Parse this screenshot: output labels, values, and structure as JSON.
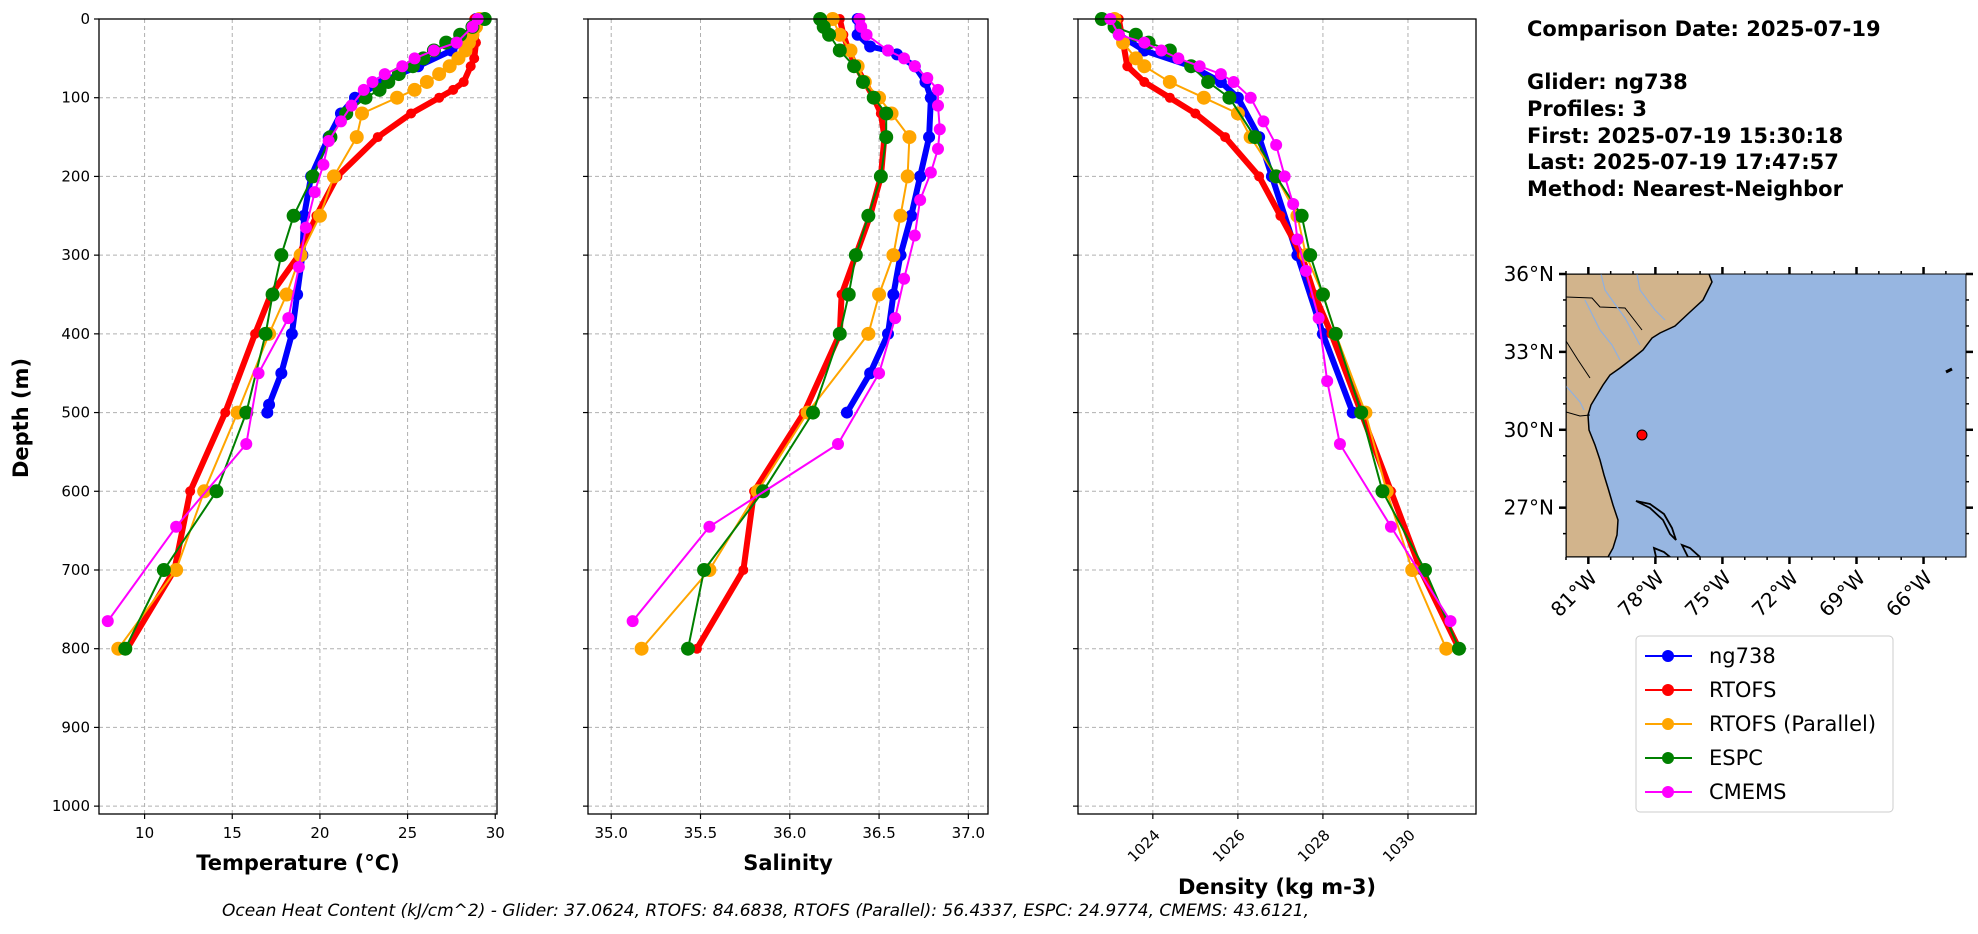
{
  "info": {
    "comparison_date": "Comparison Date: 2025-07-19",
    "lines": [
      "Glider: ng738",
      "Profiles: 3",
      "First: 2025-07-19 15:30:18",
      "Last: 2025-07-19 17:47:57",
      "Method: Nearest-Neighbor"
    ]
  },
  "footer": "Ocean Heat Content (kJ/cm^2) - Glider: 37.0624,  RTOFS: 84.6838,  RTOFS (Parallel): 56.4337,  ESPC: 24.9774,  CMEMS: 43.6121,",
  "legend": [
    {
      "name": "ng738",
      "color": "#0000ff"
    },
    {
      "name": "RTOFS",
      "color": "#ff0000"
    },
    {
      "name": "RTOFS (Parallel)",
      "color": "#ffa500"
    },
    {
      "name": "ESPC",
      "color": "#008000"
    },
    {
      "name": "CMEMS",
      "color": "#ff00ff"
    }
  ],
  "chart_data": [
    {
      "type": "line",
      "title": "",
      "xlabel": "Temperature (°C)",
      "ylabel": "Depth (m)",
      "xlim": [
        7.4,
        30.1
      ],
      "ylim": [
        1010,
        0
      ],
      "xticks": [
        "10",
        "15",
        "20",
        "25",
        "30"
      ],
      "xtick_values": [
        10,
        15,
        20,
        25,
        30
      ],
      "yticks": [
        "0",
        "100",
        "200",
        "300",
        "400",
        "500",
        "600",
        "700",
        "800",
        "900",
        "1000"
      ],
      "ytick_values": [
        0,
        100,
        200,
        300,
        400,
        500,
        600,
        700,
        800,
        900,
        1000
      ],
      "grid": true,
      "series": [
        {
          "name": "ng738",
          "color": "#0000ff",
          "depth": [
            0,
            20,
            40,
            60,
            80,
            100,
            120,
            150,
            200,
            250,
            300,
            350,
            400,
            450,
            490,
            500
          ],
          "values": [
            28.9,
            28.6,
            27.5,
            25.6,
            23.5,
            22.0,
            21.2,
            20.5,
            19.5,
            19.1,
            19.0,
            18.7,
            18.4,
            17.8,
            17.1,
            17.0
          ]
        },
        {
          "name": "RTOFS",
          "color": "#ff0000",
          "depth": [
            0,
            10,
            30,
            50,
            60,
            80,
            90,
            100,
            120,
            150,
            200,
            250,
            300,
            350,
            400,
            500,
            600,
            700,
            800
          ],
          "values": [
            28.8,
            28.9,
            28.9,
            28.8,
            28.6,
            28.2,
            27.6,
            26.8,
            25.2,
            23.3,
            21.0,
            19.8,
            18.8,
            17.2,
            16.3,
            14.6,
            12.6,
            11.7,
            9.0
          ]
        },
        {
          "name": "RTOFS (Parallel)",
          "color": "#ffa500",
          "depth": [
            0,
            10,
            20,
            30,
            40,
            50,
            60,
            70,
            80,
            90,
            100,
            120,
            150,
            200,
            250,
            300,
            350,
            400,
            500,
            600,
            700,
            800
          ],
          "values": [
            29.1,
            28.9,
            28.7,
            28.5,
            28.3,
            27.9,
            27.4,
            26.8,
            26.1,
            25.4,
            24.4,
            22.4,
            22.1,
            20.8,
            20.0,
            18.9,
            18.1,
            17.1,
            15.3,
            13.4,
            11.8,
            8.5
          ]
        },
        {
          "name": "ESPC",
          "color": "#008000",
          "depth": [
            0,
            10,
            20,
            30,
            40,
            50,
            60,
            70,
            80,
            90,
            100,
            120,
            150,
            200,
            250,
            300,
            350,
            400,
            500,
            600,
            700,
            800
          ],
          "values": [
            29.4,
            28.7,
            28.0,
            27.2,
            26.5,
            25.9,
            25.3,
            24.5,
            23.9,
            23.4,
            22.6,
            21.5,
            20.6,
            19.6,
            18.5,
            17.8,
            17.3,
            16.9,
            15.8,
            14.1,
            11.1,
            8.9
          ]
        },
        {
          "name": "CMEMS",
          "color": "#ff00ff",
          "depth": [
            0,
            10,
            30,
            40,
            50,
            60,
            70,
            80,
            90,
            110,
            130,
            155,
            185,
            220,
            265,
            315,
            380,
            450,
            540,
            645,
            765
          ],
          "values": [
            29.0,
            28.7,
            27.8,
            26.5,
            25.4,
            24.7,
            23.7,
            23.0,
            22.5,
            21.8,
            21.2,
            20.5,
            20.2,
            19.7,
            19.2,
            18.8,
            18.2,
            16.5,
            15.8,
            11.8,
            7.9
          ]
        }
      ]
    },
    {
      "type": "line",
      "title": "",
      "xlabel": "Salinity",
      "ylabel": "",
      "xlim": [
        34.87,
        37.11
      ],
      "ylim": [
        1010,
        0
      ],
      "xticks": [
        "35.0",
        "35.5",
        "36.0",
        "36.5",
        "37.0"
      ],
      "xtick_values": [
        35.0,
        35.5,
        36.0,
        36.5,
        37.0
      ],
      "grid": true,
      "series": [
        {
          "name": "ng738",
          "color": "#0000ff",
          "depth": [
            0,
            20,
            35,
            40,
            45,
            60,
            80,
            100,
            150,
            200,
            250,
            300,
            350,
            400,
            450,
            500
          ],
          "values": [
            36.38,
            36.38,
            36.45,
            36.55,
            36.6,
            36.7,
            36.76,
            36.79,
            36.78,
            36.73,
            36.68,
            36.62,
            36.58,
            36.55,
            36.45,
            36.32
          ]
        },
        {
          "name": "RTOFS",
          "color": "#ff0000",
          "depth": [
            0,
            20,
            40,
            60,
            80,
            100,
            120,
            150,
            200,
            250,
            300,
            350,
            400,
            500,
            600,
            700,
            800
          ],
          "values": [
            36.28,
            36.3,
            36.33,
            36.37,
            36.42,
            36.47,
            36.51,
            36.53,
            36.51,
            36.45,
            36.37,
            36.29,
            36.28,
            36.08,
            35.8,
            35.74,
            35.48
          ]
        },
        {
          "name": "RTOFS (Parallel)",
          "color": "#ffa500",
          "depth": [
            0,
            20,
            40,
            60,
            80,
            100,
            120,
            150,
            200,
            250,
            300,
            350,
            400,
            500,
            600,
            700,
            800
          ],
          "values": [
            36.24,
            36.28,
            36.34,
            36.38,
            36.42,
            36.5,
            36.57,
            36.67,
            36.66,
            36.62,
            36.58,
            36.5,
            36.44,
            36.1,
            35.82,
            35.55,
            35.17
          ]
        },
        {
          "name": "ESPC",
          "color": "#008000",
          "depth": [
            0,
            10,
            20,
            40,
            60,
            80,
            100,
            120,
            150,
            200,
            250,
            300,
            350,
            400,
            500,
            600,
            700,
            800
          ],
          "values": [
            36.17,
            36.19,
            36.22,
            36.28,
            36.36,
            36.41,
            36.47,
            36.54,
            36.54,
            36.51,
            36.44,
            36.37,
            36.33,
            36.28,
            36.13,
            35.85,
            35.52,
            35.43
          ]
        },
        {
          "name": "CMEMS",
          "color": "#ff00ff",
          "depth": [
            0,
            10,
            20,
            40,
            50,
            60,
            75,
            90,
            110,
            140,
            165,
            195,
            230,
            275,
            330,
            380,
            450,
            540,
            645,
            765
          ],
          "values": [
            36.39,
            36.4,
            36.43,
            36.55,
            36.64,
            36.7,
            36.77,
            36.83,
            36.83,
            36.84,
            36.83,
            36.79,
            36.73,
            36.7,
            36.64,
            36.59,
            36.5,
            36.27,
            35.55,
            35.12
          ]
        }
      ]
    },
    {
      "type": "line",
      "title": "",
      "xlabel": "Density (kg m-3)",
      "ylabel": "",
      "xlim": [
        1022.24,
        1031.6
      ],
      "ylim": [
        1010,
        0
      ],
      "xticks": [
        "1024",
        "1026",
        "1028",
        "1030"
      ],
      "xtick_values": [
        1024,
        1026,
        1028,
        1030
      ],
      "grid": true,
      "series": [
        {
          "name": "ng738",
          "color": "#0000ff",
          "depth": [
            0,
            20,
            40,
            60,
            80,
            100,
            150,
            200,
            300,
            400,
            500
          ],
          "values": [
            1023.1,
            1023.2,
            1023.8,
            1024.9,
            1025.6,
            1026.0,
            1026.5,
            1026.8,
            1027.4,
            1028.0,
            1028.7
          ]
        },
        {
          "name": "RTOFS",
          "color": "#ff0000",
          "depth": [
            0,
            30,
            60,
            80,
            100,
            120,
            150,
            200,
            250,
            300,
            350,
            400,
            500,
            600,
            700,
            800
          ],
          "values": [
            1023.2,
            1023.3,
            1023.4,
            1023.8,
            1024.4,
            1025.0,
            1025.7,
            1026.5,
            1027.0,
            1027.5,
            1027.8,
            1028.2,
            1028.9,
            1029.6,
            1030.3,
            1031.2
          ]
        },
        {
          "name": "RTOFS (Parallel)",
          "color": "#ffa500",
          "depth": [
            0,
            30,
            50,
            60,
            80,
            100,
            120,
            150,
            200,
            250,
            300,
            350,
            400,
            500,
            600,
            700,
            800
          ],
          "values": [
            1023.1,
            1023.3,
            1023.6,
            1023.8,
            1024.4,
            1025.2,
            1026.0,
            1026.3,
            1026.9,
            1027.4,
            1027.6,
            1028.0,
            1028.3,
            1029.0,
            1029.5,
            1030.1,
            1030.9
          ]
        },
        {
          "name": "ESPC",
          "color": "#008000",
          "depth": [
            0,
            10,
            20,
            30,
            40,
            60,
            80,
            100,
            150,
            200,
            250,
            300,
            350,
            400,
            500,
            600,
            700,
            800
          ],
          "values": [
            1022.8,
            1023.1,
            1023.6,
            1023.9,
            1024.4,
            1024.9,
            1025.3,
            1025.8,
            1026.4,
            1026.9,
            1027.5,
            1027.7,
            1028.0,
            1028.3,
            1028.9,
            1029.4,
            1030.4,
            1031.2
          ]
        },
        {
          "name": "CMEMS",
          "color": "#ff00ff",
          "depth": [
            0,
            20,
            30,
            40,
            50,
            60,
            70,
            80,
            100,
            130,
            160,
            200,
            235,
            280,
            320,
            380,
            460,
            540,
            645,
            765
          ],
          "values": [
            1023.0,
            1023.2,
            1023.8,
            1024.2,
            1024.6,
            1025.1,
            1025.6,
            1025.9,
            1026.3,
            1026.6,
            1026.9,
            1027.1,
            1027.3,
            1027.4,
            1027.6,
            1027.9,
            1028.1,
            1028.4,
            1029.6,
            1031.0
          ]
        }
      ]
    }
  ],
  "map": {
    "lon_range": [
      -82.0,
      -64.1
    ],
    "lat_range": [
      25.1,
      36.0
    ],
    "lon_ticks": [
      "81°W",
      "78°W",
      "75°W",
      "72°W",
      "69°W",
      "66°W"
    ],
    "lon_tick_values": [
      -81,
      -78,
      -75,
      -72,
      -69,
      -66
    ],
    "lat_ticks": [
      "36°N",
      "33°N",
      "30°N",
      "27°N"
    ],
    "lat_tick_values": [
      36,
      33,
      30,
      27
    ],
    "glider_position": {
      "lon": -78.6,
      "lat": 29.8,
      "color": "#ff0000"
    },
    "land_color": "#d2b48c",
    "ocean_color": "#97b6e1"
  }
}
